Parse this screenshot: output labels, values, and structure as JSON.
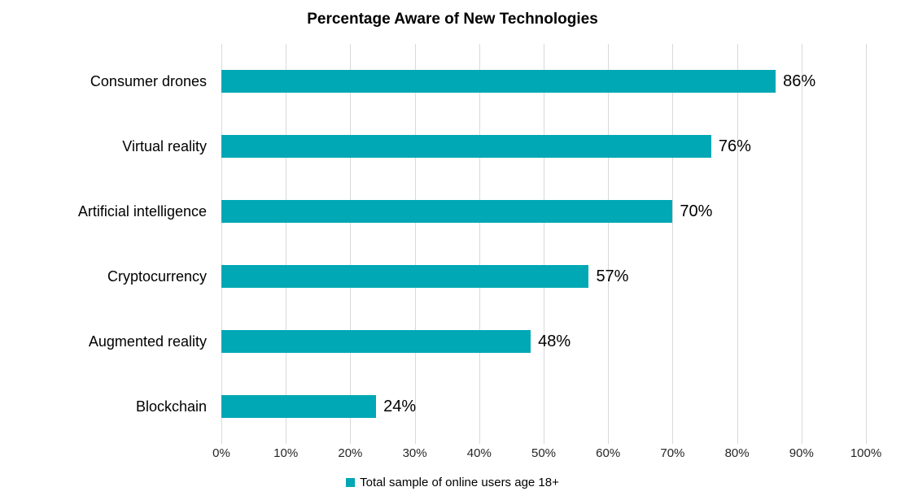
{
  "chart": {
    "title": "Percentage Aware of New Technologies",
    "legend_label": "Total sample of online users age 18+",
    "bar_color": "#00a7b4",
    "gridline_color": "#d9d9d9"
  },
  "chart_data": {
    "type": "bar",
    "orientation": "horizontal",
    "title": "Percentage Aware of New Technologies",
    "categories": [
      "Consumer drones",
      "Virtual reality",
      "Artificial intelligence",
      "Cryptocurrency",
      "Augmented reality",
      "Blockchain"
    ],
    "values": [
      86,
      76,
      70,
      57,
      48,
      24
    ],
    "data_labels": [
      "86%",
      "76%",
      "70%",
      "57%",
      "48%",
      "24%"
    ],
    "x_ticks": [
      "0%",
      "10%",
      "20%",
      "30%",
      "40%",
      "50%",
      "60%",
      "70%",
      "80%",
      "90%",
      "100%"
    ],
    "x_tick_values": [
      0,
      10,
      20,
      30,
      40,
      50,
      60,
      70,
      80,
      90,
      100
    ],
    "xlim": [
      0,
      100
    ],
    "grid": true,
    "legend": [
      "Total sample of online users age 18+"
    ],
    "legend_position": "bottom"
  }
}
